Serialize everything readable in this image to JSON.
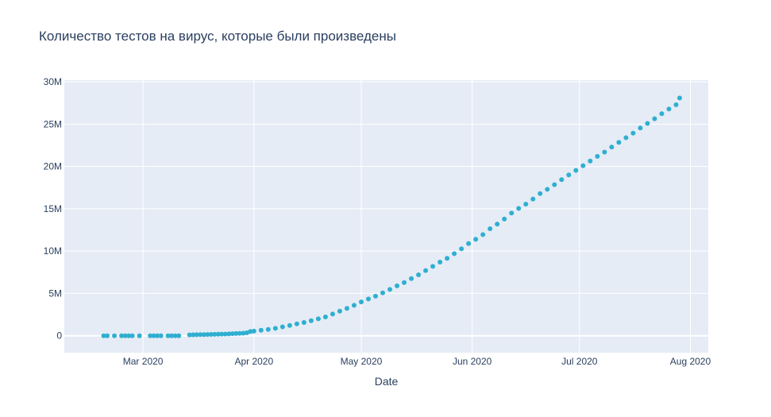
{
  "chart_data": {
    "type": "scatter",
    "title": "Количество тестов на вирус, которые были произведены",
    "xlabel": "Date",
    "ylabel": "",
    "x_range": [
      "2020-02-08",
      "2020-08-06"
    ],
    "ylim": [
      -2000000,
      30200000
    ],
    "x_ticks": [
      {
        "date": "2020-03-01",
        "label": "Mar 2020"
      },
      {
        "date": "2020-04-01",
        "label": "Apr 2020"
      },
      {
        "date": "2020-05-01",
        "label": "May 2020"
      },
      {
        "date": "2020-06-01",
        "label": "Jun 2020"
      },
      {
        "date": "2020-07-01",
        "label": "Jul 2020"
      },
      {
        "date": "2020-08-01",
        "label": "Aug 2020"
      }
    ],
    "y_ticks": [
      {
        "value": 0,
        "label": "0"
      },
      {
        "value": 5000000,
        "label": "5M"
      },
      {
        "value": 10000000,
        "label": "10M"
      },
      {
        "value": 15000000,
        "label": "15M"
      },
      {
        "value": 20000000,
        "label": "20M"
      },
      {
        "value": 25000000,
        "label": "25M"
      },
      {
        "value": 30000000,
        "label": "30M"
      }
    ],
    "grid": true,
    "marker_color": "#2fafd0",
    "plot_bgcolor": "#e5ecf6",
    "series": [
      {
        "x": [
          "2020-02-19",
          "2020-02-20",
          "2020-02-22",
          "2020-02-24",
          "2020-02-25",
          "2020-02-26",
          "2020-02-27",
          "2020-02-29",
          "2020-03-03",
          "2020-03-04",
          "2020-03-05",
          "2020-03-06",
          "2020-03-08",
          "2020-03-09",
          "2020-03-10",
          "2020-03-11",
          "2020-03-14",
          "2020-03-15",
          "2020-03-16",
          "2020-03-17",
          "2020-03-18",
          "2020-03-19",
          "2020-03-20",
          "2020-03-21",
          "2020-03-22",
          "2020-03-23",
          "2020-03-24",
          "2020-03-25",
          "2020-03-26",
          "2020-03-27",
          "2020-03-28",
          "2020-03-29",
          "2020-03-30",
          "2020-03-31",
          "2020-04-01",
          "2020-04-03",
          "2020-04-05",
          "2020-04-07",
          "2020-04-09",
          "2020-04-11",
          "2020-04-13",
          "2020-04-15",
          "2020-04-17",
          "2020-04-19",
          "2020-04-21",
          "2020-04-23",
          "2020-04-25",
          "2020-04-27",
          "2020-04-29",
          "2020-05-01",
          "2020-05-03",
          "2020-05-05",
          "2020-05-07",
          "2020-05-09",
          "2020-05-11",
          "2020-05-13",
          "2020-05-15",
          "2020-05-17",
          "2020-05-19",
          "2020-05-21",
          "2020-05-23",
          "2020-05-25",
          "2020-05-27",
          "2020-05-29",
          "2020-05-31",
          "2020-06-02",
          "2020-06-04",
          "2020-06-06",
          "2020-06-08",
          "2020-06-10",
          "2020-06-12",
          "2020-06-14",
          "2020-06-16",
          "2020-06-18",
          "2020-06-20",
          "2020-06-22",
          "2020-06-24",
          "2020-06-26",
          "2020-06-28",
          "2020-06-30",
          "2020-07-02",
          "2020-07-04",
          "2020-07-06",
          "2020-07-08",
          "2020-07-10",
          "2020-07-12",
          "2020-07-14",
          "2020-07-16",
          "2020-07-18",
          "2020-07-20",
          "2020-07-22",
          "2020-07-24",
          "2020-07-26",
          "2020-07-28",
          "2020-07-29"
        ],
        "y": [
          0,
          0,
          0,
          0,
          0,
          0,
          0,
          0,
          0,
          0,
          0,
          0,
          0,
          0,
          0,
          0,
          100000,
          110000,
          120000,
          130000,
          140000,
          150000,
          160000,
          170000,
          180000,
          190000,
          200000,
          220000,
          240000,
          260000,
          280000,
          300000,
          350000,
          500000,
          550000,
          650000,
          750000,
          870000,
          1050000,
          1220000,
          1400000,
          1570000,
          1780000,
          2000000,
          2230000,
          2560000,
          2900000,
          3230000,
          3600000,
          4000000,
          4350000,
          4680000,
          5070000,
          5470000,
          5900000,
          6280000,
          6750000,
          7200000,
          7700000,
          8200000,
          8700000,
          9150000,
          9700000,
          10280000,
          10900000,
          11400000,
          11950000,
          12650000,
          13200000,
          13800000,
          14500000,
          15050000,
          15550000,
          16150000,
          16800000,
          17300000,
          17850000,
          18450000,
          19000000,
          19550000,
          20100000,
          20650000,
          21200000,
          21700000,
          22300000,
          22850000,
          23400000,
          23950000,
          24550000,
          25100000,
          25650000,
          26250000,
          26800000,
          27300000,
          28100000
        ]
      }
    ]
  }
}
